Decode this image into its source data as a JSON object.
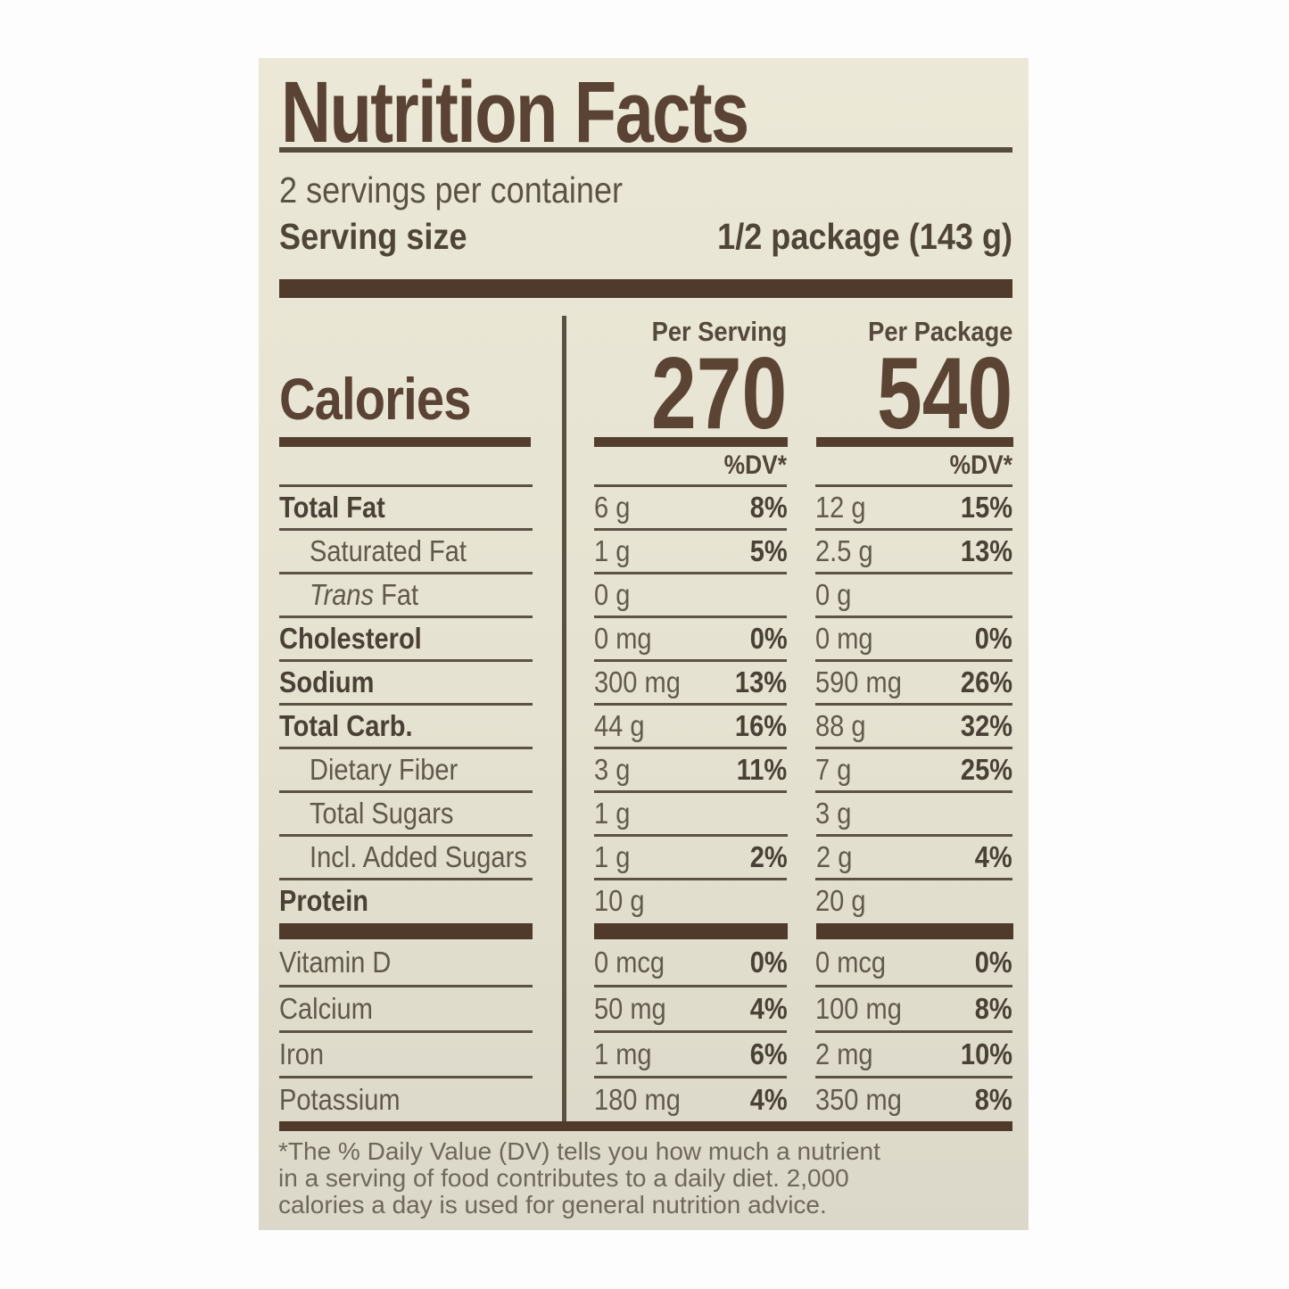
{
  "label": {
    "title": "Nutrition Facts",
    "servings_per_container": "2 servings per container",
    "serving_size_label": "Serving size",
    "serving_size_value": "1/2 package (143 g)",
    "columns": {
      "serving": "Per Serving",
      "package": "Per Package",
      "dv": "%DV*"
    },
    "calories": {
      "label": "Calories",
      "per_serving": "270",
      "per_package": "540"
    },
    "main_rows": [
      {
        "name": "Total Fat",
        "bold": true,
        "indent": false,
        "italic": "",
        "serving_amount": "6 g",
        "serving_dv": "8%",
        "package_amount": "12 g",
        "package_dv": "15%"
      },
      {
        "name": "Saturated Fat",
        "bold": false,
        "indent": true,
        "italic": "",
        "serving_amount": "1 g",
        "serving_dv": "5%",
        "package_amount": "2.5 g",
        "package_dv": "13%"
      },
      {
        "name": " Fat",
        "bold": false,
        "indent": true,
        "italic": "Trans",
        "serving_amount": "0 g",
        "serving_dv": "",
        "package_amount": "0 g",
        "package_dv": ""
      },
      {
        "name": "Cholesterol",
        "bold": true,
        "indent": false,
        "italic": "",
        "serving_amount": "0 mg",
        "serving_dv": "0%",
        "package_amount": "0 mg",
        "package_dv": "0%"
      },
      {
        "name": "Sodium",
        "bold": true,
        "indent": false,
        "italic": "",
        "serving_amount": "300 mg",
        "serving_dv": "13%",
        "package_amount": "590 mg",
        "package_dv": "26%"
      },
      {
        "name": "Total Carb.",
        "bold": true,
        "indent": false,
        "italic": "",
        "serving_amount": "44 g",
        "serving_dv": "16%",
        "package_amount": "88 g",
        "package_dv": "32%"
      },
      {
        "name": "Dietary Fiber",
        "bold": false,
        "indent": true,
        "italic": "",
        "serving_amount": "3 g",
        "serving_dv": "11%",
        "package_amount": "7 g",
        "package_dv": "25%"
      },
      {
        "name": "Total Sugars",
        "bold": false,
        "indent": true,
        "italic": "",
        "serving_amount": "1 g",
        "serving_dv": "",
        "package_amount": "3 g",
        "package_dv": ""
      },
      {
        "name": "Incl. Added Sugars",
        "bold": false,
        "indent": true,
        "italic": "",
        "serving_amount": "1 g",
        "serving_dv": "2%",
        "package_amount": "2 g",
        "package_dv": "4%"
      },
      {
        "name": "Protein",
        "bold": true,
        "indent": false,
        "italic": "",
        "serving_amount": "10 g",
        "serving_dv": "",
        "package_amount": "20 g",
        "package_dv": ""
      }
    ],
    "micro_rows": [
      {
        "name": "Vitamin D",
        "serving_amount": "0 mcg",
        "serving_dv": "0%",
        "package_amount": "0 mcg",
        "package_dv": "0%"
      },
      {
        "name": "Calcium",
        "serving_amount": "50 mg",
        "serving_dv": "4%",
        "package_amount": "100 mg",
        "package_dv": "8%"
      },
      {
        "name": "Iron",
        "serving_amount": "1 mg",
        "serving_dv": "6%",
        "package_amount": "2 mg",
        "package_dv": "10%"
      },
      {
        "name": "Potassium",
        "serving_amount": "180 mg",
        "serving_dv": "4%",
        "package_amount": "350 mg",
        "package_dv": "8%"
      }
    ],
    "footnote_lines": [
      "*The % Daily Value (DV) tells you how much a nutrient",
      "in a serving of food contributes to a daily diet. 2,000",
      "calories a day is used for general nutrition advice."
    ]
  }
}
